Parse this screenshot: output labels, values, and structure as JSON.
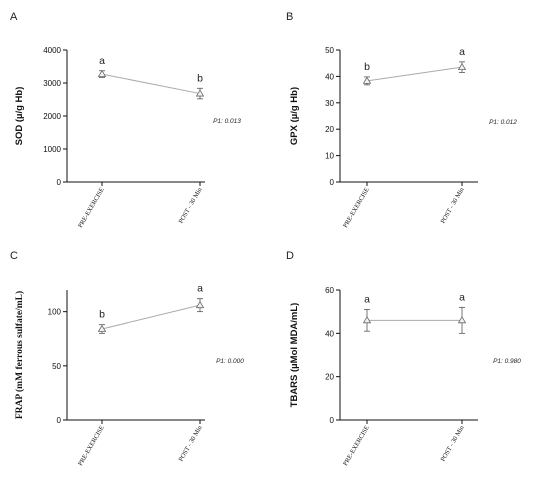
{
  "colors": {
    "axis": "#111111",
    "line": "#aaaaaa",
    "marker_fill": "#f2f2f2",
    "marker_stroke": "#666666"
  },
  "chart_data": [
    {
      "panel": "A",
      "type": "line",
      "ylabel": "SOD (µ/g Hb)",
      "categories": [
        "PRE-EXERCISE",
        "POST - 30 Min"
      ],
      "values": [
        3270,
        2680
      ],
      "errors": [
        100,
        160
      ],
      "ylim": [
        0,
        4000
      ],
      "yticks": [
        0,
        1000,
        2000,
        3000,
        4000
      ],
      "significance": [
        "a",
        "b"
      ],
      "p_value": "P1: 0.013",
      "marker": "triangle",
      "grid": false
    },
    {
      "panel": "B",
      "type": "line",
      "ylabel": "GPX (µ/g Hb)",
      "categories": [
        "PRE-EXERCISE",
        "POST - 30 Min"
      ],
      "values": [
        38.3,
        43.5
      ],
      "errors": [
        1.5,
        2.0
      ],
      "ylim": [
        0,
        50
      ],
      "yticks": [
        0,
        10,
        20,
        30,
        40,
        50
      ],
      "significance": [
        "b",
        "a"
      ],
      "p_value": "P1: 0.012",
      "marker": "triangle",
      "grid": false
    },
    {
      "panel": "C",
      "type": "line",
      "ylabel": "FRAP (mM ferrous sulfate/mL)",
      "categories": [
        "PRE-EXERCISE",
        "POST - 30 Min"
      ],
      "values": [
        84,
        106
      ],
      "errors": [
        4,
        6
      ],
      "ylim": [
        0,
        120
      ],
      "yticks": [
        0,
        50,
        100
      ],
      "significance": [
        "b",
        "a"
      ],
      "p_value": "P1: 0.000",
      "marker": "triangle",
      "grid": false
    },
    {
      "panel": "D",
      "type": "line",
      "ylabel": "TBARS (µMol MDA/mL)",
      "categories": [
        "PRE-EXERCISE",
        "POST - 30 Min"
      ],
      "values": [
        46,
        46
      ],
      "errors": [
        5,
        6
      ],
      "ylim": [
        0,
        60
      ],
      "yticks": [
        0,
        20,
        40,
        60
      ],
      "significance": [
        "a",
        "a"
      ],
      "p_value": "P1: 0.980",
      "marker": "triangle",
      "grid": false
    }
  ]
}
